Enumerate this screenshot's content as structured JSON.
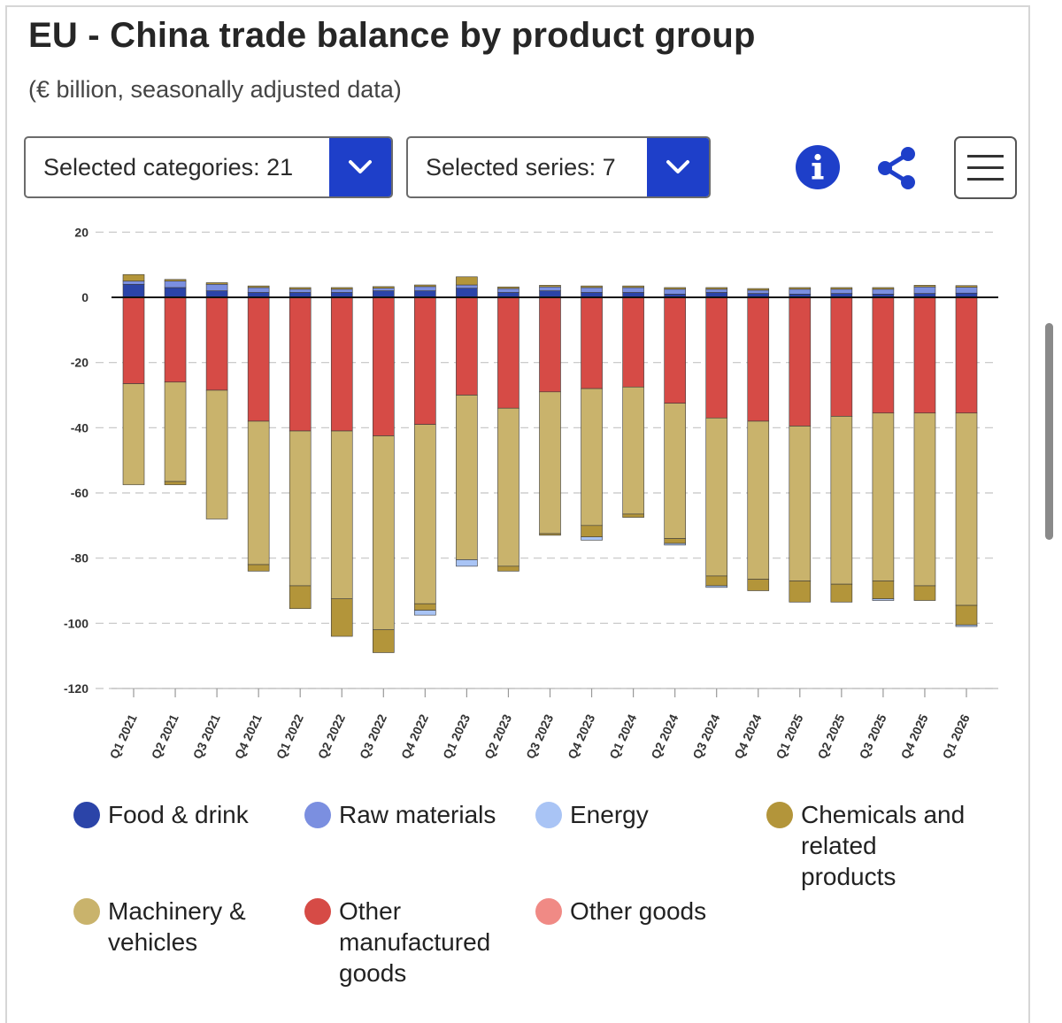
{
  "title": "EU - China trade balance by product group",
  "subtitle": "(€ billion, seasonally adjusted data)",
  "controls": {
    "categories_label": "Selected categories: 21",
    "series_label": "Selected series: 7",
    "info_icon": "info-icon",
    "share_icon": "share-icon",
    "menu_icon": "hamburger-menu-icon"
  },
  "legend": [
    {
      "label": "Food & drink",
      "color": "#2b44a8"
    },
    {
      "label": "Raw materials",
      "color": "#7b8fe0"
    },
    {
      "label": "Energy",
      "color": "#a9c4f5"
    },
    {
      "label": "Chemicals and related products",
      "color": "#b3953a"
    },
    {
      "label": "Machinery & vehicles",
      "color": "#c9b36c"
    },
    {
      "label": "Other manufactured goods",
      "color": "#d64b46"
    },
    {
      "label": "Other goods",
      "color": "#f08a85"
    }
  ],
  "chart_data": {
    "type": "bar",
    "stacked": true,
    "categories": [
      "Q1 2021",
      "Q2 2021",
      "Q3 2021",
      "Q4 2021",
      "Q1 2022",
      "Q2 2022",
      "Q3 2022",
      "Q4 2022",
      "Q1 2023",
      "Q2 2023",
      "Q3 2023",
      "Q4 2023",
      "Q1 2024",
      "Q2 2024",
      "Q3 2024",
      "Q4 2024",
      "Q1 2025",
      "Q2 2025",
      "Q3 2025",
      "Q4 2025",
      "Q1 2026"
    ],
    "ylim": [
      -120,
      20
    ],
    "yticks": [
      20,
      0,
      -20,
      -40,
      -60,
      -80,
      -100,
      -120
    ],
    "grid": true,
    "legend_position": "bottom",
    "series": [
      {
        "name": "Food & drink",
        "color": "#2b44a8",
        "values": [
          4.0,
          3.0,
          2.0,
          1.5,
          1.5,
          1.5,
          2.0,
          2.0,
          2.8,
          1.5,
          2.0,
          1.5,
          1.5,
          1.0,
          1.5,
          1.2,
          1.0,
          1.2,
          1.0,
          1.2,
          1.3
        ]
      },
      {
        "name": "Raw materials",
        "color": "#7b8fe0",
        "values": [
          1.0,
          2.0,
          2.0,
          1.5,
          1.0,
          1.0,
          0.8,
          1.3,
          1.0,
          1.2,
          1.2,
          1.5,
          1.5,
          1.5,
          1.0,
          1.0,
          1.5,
          1.3,
          1.5,
          2.0,
          1.8
        ]
      },
      {
        "name": "Chemicals and related products",
        "color": "#b3953a",
        "values": [
          2.0,
          0.5,
          0.5,
          0.5,
          0.5,
          0.5,
          0.5,
          0.5,
          2.5,
          0.5,
          0.5,
          0.5,
          0.5,
          0.5,
          0.5,
          0.5,
          0.5,
          0.5,
          0.5,
          0.5,
          0.5
        ]
      },
      {
        "name": "Other manufactured goods",
        "color": "#d64b46",
        "values": [
          -26.5,
          -26,
          -28.5,
          -38,
          -41,
          -41,
          -42.5,
          -39,
          -30,
          -34,
          -29,
          -28,
          -27.5,
          -32.5,
          -37,
          -38,
          -39.5,
          -36.5,
          -35.5,
          -35.5,
          -35.5
        ]
      },
      {
        "name": "Machinery & vehicles",
        "color": "#c9b36c",
        "values": [
          -31,
          -30.5,
          -39.5,
          -44,
          -47.5,
          -51.5,
          -59.5,
          -55,
          -50.5,
          -48.5,
          -43.5,
          -42,
          -39,
          -41.5,
          -48.5,
          -48.5,
          -47.5,
          -51.5,
          -51.5,
          -53,
          -59
        ]
      },
      {
        "name": "Chemicals and related products",
        "color": "#b3953a",
        "values": [
          0,
          -1.0,
          0,
          -2.0,
          -7.0,
          -11.5,
          -7.0,
          -2.0,
          0,
          -1.5,
          -0.5,
          -3.5,
          -1.0,
          -1.5,
          -3.0,
          -3.5,
          -6.5,
          -5.5,
          -5.5,
          -4.5,
          -6.0
        ]
      },
      {
        "name": "Energy",
        "color": "#a9c4f5",
        "values": [
          0,
          0,
          0,
          0,
          0,
          0,
          0,
          -1.5,
          -2.0,
          0,
          0,
          -1.0,
          0,
          -0.5,
          -0.5,
          0,
          0,
          0,
          -0.5,
          0,
          -0.5
        ]
      },
      {
        "name": "Other goods",
        "color": "#f08a85",
        "values": [
          0,
          0,
          0,
          0,
          0,
          0,
          0,
          0,
          0,
          0,
          0,
          0,
          0,
          0,
          0,
          0,
          0,
          0,
          0,
          0,
          0
        ]
      }
    ]
  }
}
